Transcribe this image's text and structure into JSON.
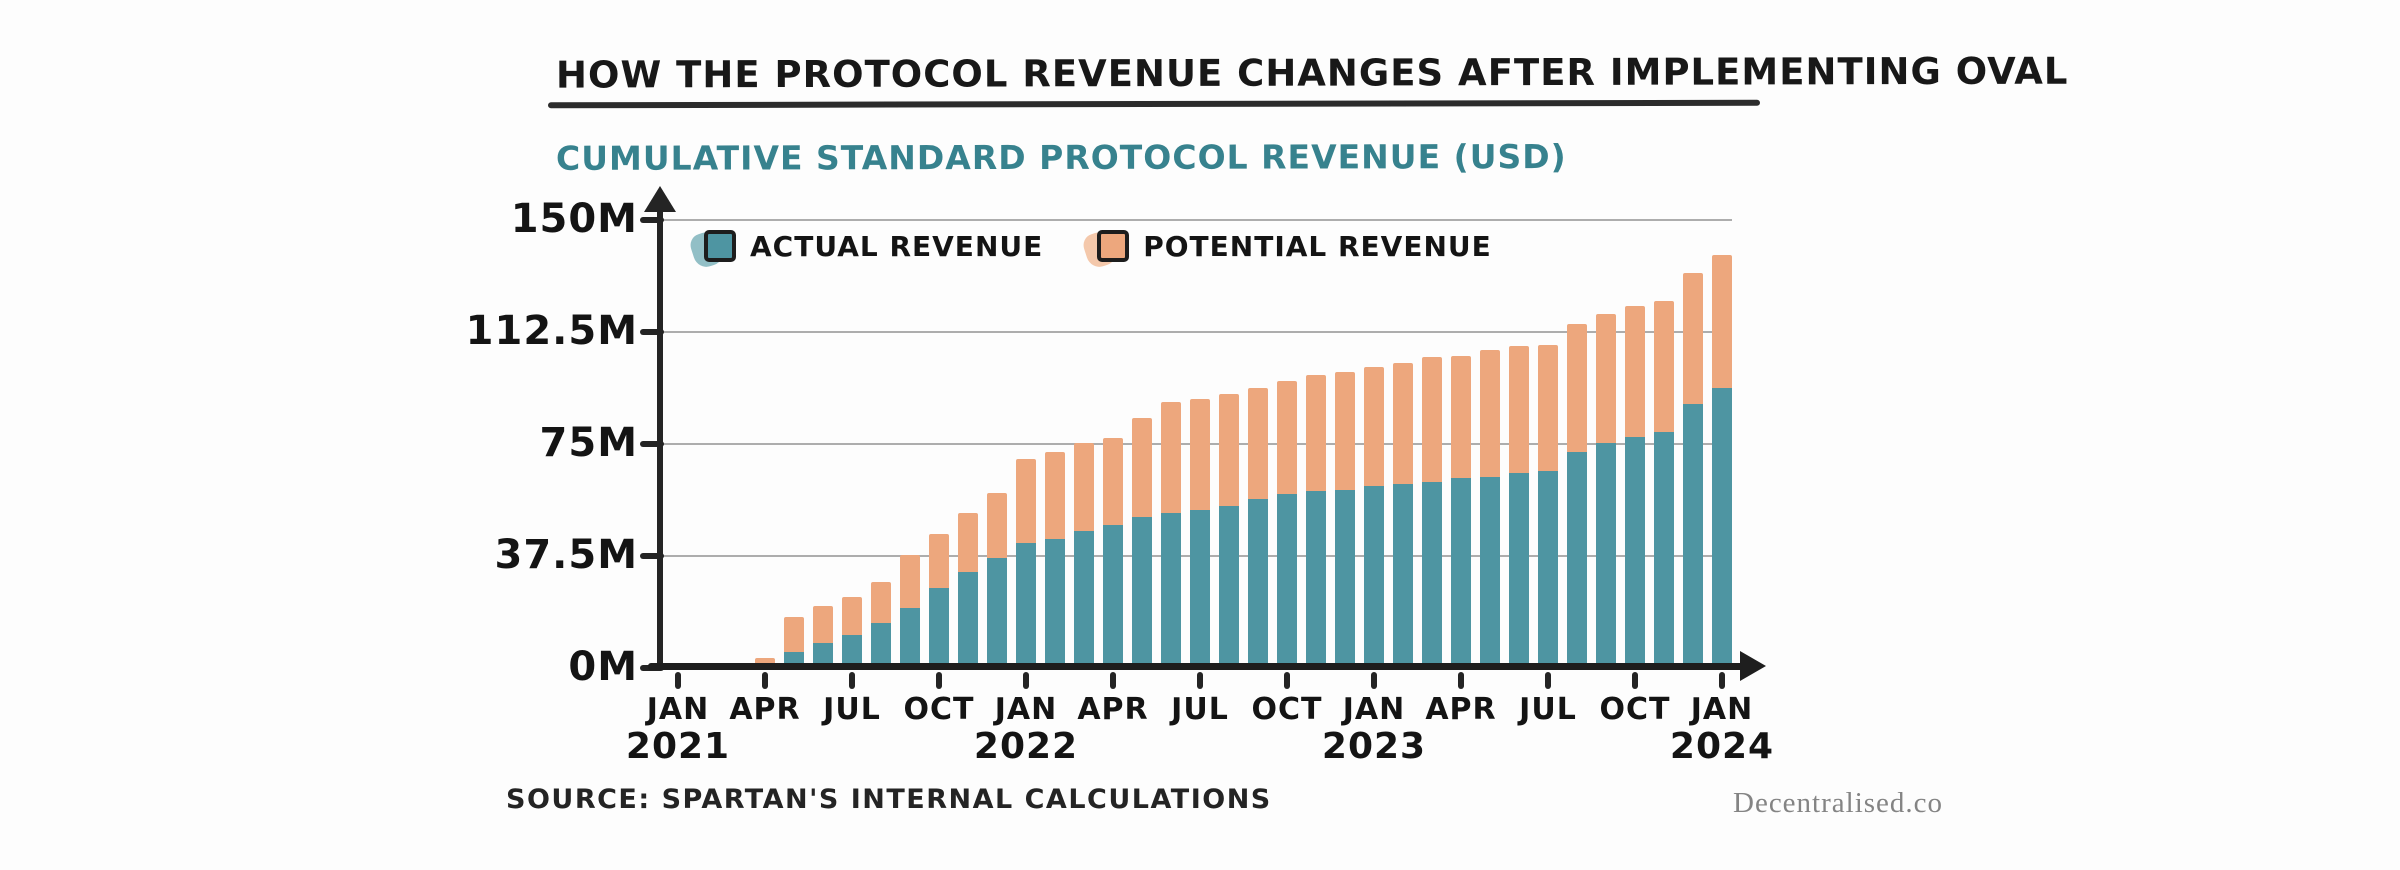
{
  "header": {
    "title": "HOW THE PROTOCOL REVENUE CHANGES AFTER IMPLEMENTING OVAL",
    "subtitle": "CUMULATIVE STANDARD PROTOCOL REVENUE (USD)"
  },
  "legend": {
    "items": [
      {
        "label": "ACTUAL REVENUE",
        "color": "#4E95A2",
        "blob_color": "#7FB4BC"
      },
      {
        "label": "POTENTIAL REVENUE",
        "color": "#EDA77D",
        "blob_color": "#F2BE9C"
      }
    ]
  },
  "footer": {
    "source": "SOURCE: SPARTAN'S INTERNAL CALCULATIONS",
    "watermark": "Decentralised.co"
  },
  "chart_data": {
    "type": "bar",
    "stacked": true,
    "title": "HOW THE PROTOCOL REVENUE CHANGES AFTER IMPLEMENTING OVAL",
    "subtitle": "CUMULATIVE STANDARD PROTOCOL REVENUE (USD)",
    "unit": "USD millions",
    "grid": true,
    "legend_position": "top-left",
    "ylim": [
      0,
      150
    ],
    "categories": [
      "Jan 2021",
      "Feb 2021",
      "Mar 2021",
      "Apr 2021",
      "May 2021",
      "Jun 2021",
      "Jul 2021",
      "Aug 2021",
      "Sep 2021",
      "Oct 2021",
      "Nov 2021",
      "Dec 2021",
      "Jan 2022",
      "Feb 2022",
      "Mar 2022",
      "Apr 2022",
      "May 2022",
      "Jun 2022",
      "Jul 2022",
      "Aug 2022",
      "Sep 2022",
      "Oct 2022",
      "Nov 2022",
      "Dec 2022",
      "Jan 2023",
      "Feb 2023",
      "Mar 2023",
      "Apr 2023",
      "May 2023",
      "Jun 2023",
      "Jul 2023",
      "Aug 2023",
      "Sep 2023",
      "Oct 2023",
      "Nov 2023",
      "Dec 2023",
      "Jan 2024"
    ],
    "series": [
      {
        "name": "Actual Revenue",
        "color": "#4E95A2",
        "values": [
          0.2,
          0.3,
          0.5,
          1.5,
          5.5,
          8.5,
          11.0,
          15.2,
          20.2,
          26.7,
          32.1,
          36.9,
          41.7,
          43.2,
          45.8,
          47.8,
          50.6,
          51.9,
          53.0,
          54.3,
          56.6,
          58.1,
          59.2,
          59.5,
          60.8,
          61.7,
          62.2,
          63.6,
          64.1,
          65.3,
          65.8,
          72.2,
          75.2,
          77.2,
          79.1,
          88.3,
          93.9
        ]
      },
      {
        "name": "Potential Revenue",
        "color": "#EDA77D",
        "values": [
          0.2,
          0.5,
          0.7,
          2.0,
          11.6,
          12.3,
          12.8,
          13.6,
          17.8,
          18.2,
          19.8,
          21.7,
          28.2,
          29.2,
          29.6,
          29.1,
          33.2,
          37.2,
          37.2,
          37.6,
          37.3,
          38.0,
          38.8,
          39.6,
          40.1,
          40.5,
          41.9,
          40.8,
          42.3,
          42.5,
          42.5,
          43.0,
          43.3,
          43.9,
          43.7,
          43.9,
          44.4
        ]
      }
    ],
    "stacked_totals": [
      0.4,
      0.8,
      1.2,
      3.5,
      17.1,
      20.8,
      23.8,
      28.8,
      38.0,
      44.9,
      51.9,
      58.6,
      69.9,
      72.4,
      75.4,
      76.9,
      83.8,
      89.1,
      90.2,
      91.9,
      93.9,
      96.1,
      98.0,
      99.1,
      100.9,
      102.2,
      104.1,
      104.4,
      106.4,
      107.8,
      108.3,
      115.2,
      118.5,
      121.1,
      122.8,
      132.2,
      138.3
    ],
    "yticks": [
      {
        "value": 0,
        "label": "0M"
      },
      {
        "value": 37.5,
        "label": "37.5M"
      },
      {
        "value": 75,
        "label": "75M"
      },
      {
        "value": 112.5,
        "label": "112.5M"
      },
      {
        "value": 150,
        "label": "150M"
      }
    ],
    "xticks": [
      {
        "index": 0,
        "label": "JAN",
        "year": "2021"
      },
      {
        "index": 3,
        "label": "APR"
      },
      {
        "index": 6,
        "label": "JUL"
      },
      {
        "index": 9,
        "label": "OCT"
      },
      {
        "index": 12,
        "label": "JAN",
        "year": "2022"
      },
      {
        "index": 15,
        "label": "APR"
      },
      {
        "index": 18,
        "label": "JUL"
      },
      {
        "index": 21,
        "label": "OCT"
      },
      {
        "index": 24,
        "label": "JAN",
        "year": "2023"
      },
      {
        "index": 27,
        "label": "APR"
      },
      {
        "index": 30,
        "label": "JUL"
      },
      {
        "index": 33,
        "label": "OCT"
      },
      {
        "index": 36,
        "label": "JAN",
        "year": "2024"
      }
    ]
  }
}
